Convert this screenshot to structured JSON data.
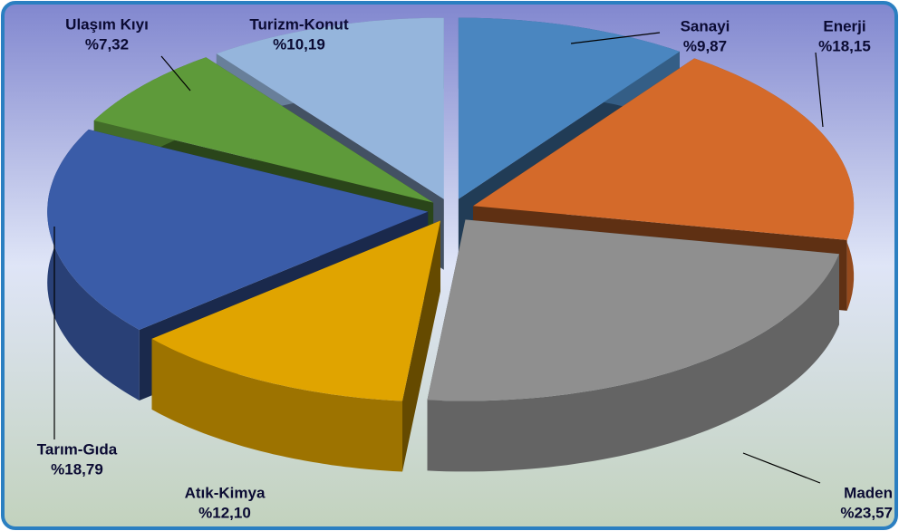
{
  "chart_data": {
    "type": "pie",
    "categories": [
      "Sanayi",
      "Enerji",
      "Maden",
      "Atık-Kimya",
      "Tarım-Gıda",
      "Ulaşım Kıyı",
      "Turizm-Konut"
    ],
    "values": [
      9.87,
      18.15,
      23.57,
      12.1,
      18.79,
      7.32,
      10.19
    ],
    "value_labels": [
      "%9,87",
      "%18,15",
      "%23,57",
      "%12,10",
      "%18,79",
      "%7,32",
      "%10,19"
    ],
    "colors": [
      "#4a86c0",
      "#d46a2a",
      "#8f8f8f",
      "#e0a400",
      "#3a5ca8",
      "#5e9a3a",
      "#95b5dc"
    ]
  }
}
